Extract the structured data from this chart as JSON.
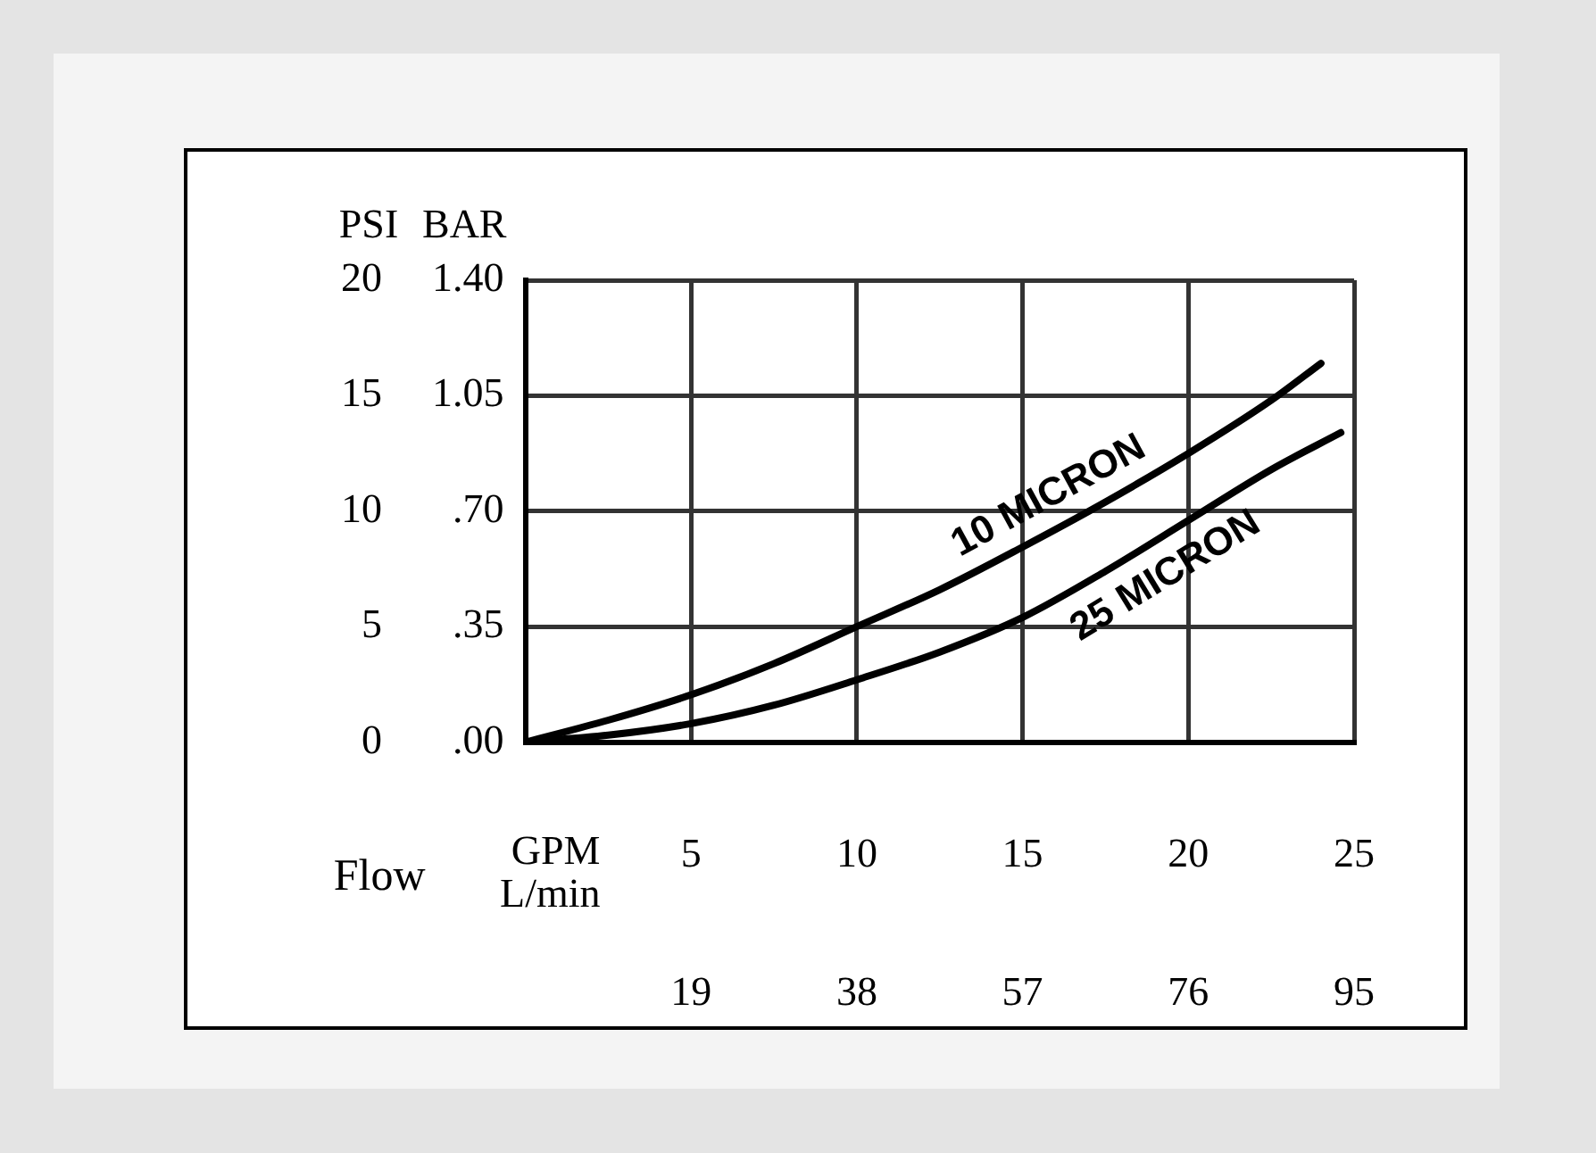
{
  "chart_data": {
    "type": "line",
    "xlabel": "GPM",
    "x2label": "L/min",
    "ylabel": "PSI",
    "y2label": "BAR",
    "annotations": [
      "Flow"
    ],
    "series": [
      {
        "name": "10 MICRON",
        "color": "#000000",
        "x": [
          0,
          2.5,
          5,
          7.5,
          10,
          12.5,
          15,
          17.5,
          20,
          22.5,
          24
        ],
        "values": [
          0,
          0.95,
          2.05,
          3.4,
          5.0,
          6.6,
          8.45,
          10.4,
          12.5,
          14.8,
          16.4
        ]
      },
      {
        "name": "25 MICRON",
        "color": "#000000",
        "x": [
          0,
          2.5,
          5,
          7.5,
          10,
          12.5,
          15,
          17.5,
          20,
          22.5,
          24.6
        ],
        "values": [
          0,
          0.3,
          0.8,
          1.6,
          2.7,
          3.9,
          5.4,
          7.4,
          9.6,
          11.8,
          13.4
        ]
      }
    ],
    "xlim": [
      0,
      25
    ],
    "xticks": [
      5,
      10,
      15,
      20,
      25
    ],
    "x2lim": [
      0,
      95
    ],
    "x2ticks": [
      19,
      38,
      57,
      76,
      95
    ],
    "ylim": [
      0,
      20
    ],
    "yticks": [
      0,
      5,
      10,
      15,
      20
    ],
    "y2lim": [
      0,
      1.4
    ],
    "y2ticks": [
      {
        "value": 0,
        "label": ".00"
      },
      {
        "value": 0.35,
        "label": ".35"
      },
      {
        "value": 0.7,
        "label": ".70"
      },
      {
        "value": 1.05,
        "label": "1.05"
      },
      {
        "value": 1.4,
        "label": "1.40"
      }
    ],
    "grid": true,
    "legend": false
  }
}
